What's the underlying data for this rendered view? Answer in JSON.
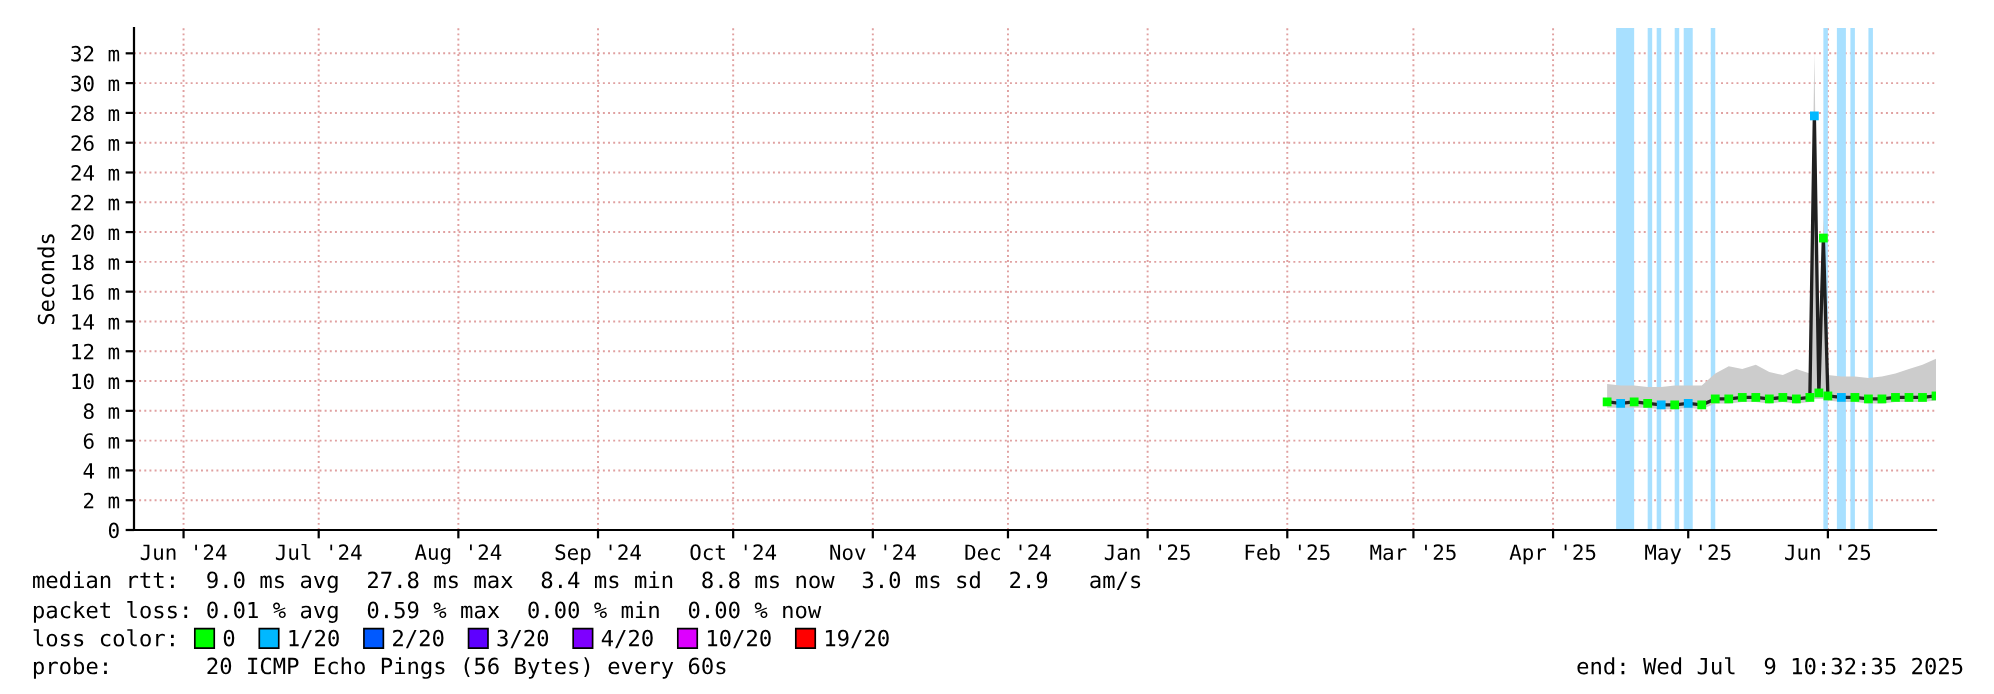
{
  "chart_data": {
    "type": "line",
    "ylabel": "Seconds",
    "legend_title": "loss color:",
    "legend": "bottom",
    "grid": true,
    "xlim": [
      "2024-06-04",
      "2025-07-09"
    ],
    "xticks": [
      {
        "value": "2024-06-15",
        "label": "Jun '24"
      },
      {
        "value": "2024-07-15",
        "label": "Jul '24"
      },
      {
        "value": "2024-08-15",
        "label": "Aug '24"
      },
      {
        "value": "2024-09-15",
        "label": "Sep '24"
      },
      {
        "value": "2024-10-15",
        "label": "Oct '24"
      },
      {
        "value": "2024-11-15",
        "label": "Nov '24"
      },
      {
        "value": "2024-12-15",
        "label": "Dec '24"
      },
      {
        "value": "2025-01-15",
        "label": "Jan '25"
      },
      {
        "value": "2025-02-15",
        "label": "Feb '25"
      },
      {
        "value": "2025-03-15",
        "label": "Mar '25"
      },
      {
        "value": "2025-04-15",
        "label": "Apr '25"
      },
      {
        "value": "2025-05-15",
        "label": "May '25"
      },
      {
        "value": "2025-06-15",
        "label": "Jun '25"
      }
    ],
    "ylim": [
      0,
      33.7
    ],
    "yticks": [
      0,
      {
        "value": 2,
        "label": "2 m"
      },
      {
        "value": 4,
        "label": "4 m"
      },
      {
        "value": 6,
        "label": "6 m"
      },
      {
        "value": 8,
        "label": "8 m"
      },
      {
        "value": 10,
        "label": "10 m"
      },
      {
        "value": 12,
        "label": "12 m"
      },
      {
        "value": 14,
        "label": "14 m"
      },
      {
        "value": 16,
        "label": "16 m"
      },
      {
        "value": 18,
        "label": "18 m"
      },
      {
        "value": 20,
        "label": "20 m"
      },
      {
        "value": 22,
        "label": "22 m"
      },
      {
        "value": 24,
        "label": "24 m"
      },
      {
        "value": 26,
        "label": "26 m"
      },
      {
        "value": 28,
        "label": "28 m"
      },
      {
        "value": 30,
        "label": "30 m"
      },
      {
        "value": 32,
        "label": "32 m"
      }
    ],
    "x": [
      "2025-04-27",
      "2025-04-30",
      "2025-05-03",
      "2025-05-06",
      "2025-05-09",
      "2025-05-12",
      "2025-05-15",
      "2025-05-18",
      "2025-05-21",
      "2025-05-24",
      "2025-05-27",
      "2025-05-30",
      "2025-06-02",
      "2025-06-05",
      "2025-06-08",
      "2025-06-11",
      "2025-06-12",
      "2025-06-13",
      "2025-06-14",
      "2025-06-15",
      "2025-06-18",
      "2025-06-21",
      "2025-06-24",
      "2025-06-27",
      "2025-06-30",
      "2025-07-03",
      "2025-07-06",
      "2025-07-09"
    ],
    "series": [
      {
        "color": "#202020",
        "marker": "none",
        "values": [
          8.6,
          8.5,
          8.6,
          8.5,
          8.4,
          8.4,
          8.5,
          8.4,
          8.8,
          8.8,
          8.9,
          8.9,
          8.8,
          8.9,
          8.8,
          8.9,
          27.8,
          9.2,
          19.6,
          9.0,
          8.9,
          8.9,
          8.8,
          8.8,
          8.9,
          8.9,
          8.9,
          9.0
        ],
        "lower": [
          8.2,
          8.2,
          8.2,
          8.2,
          8.1,
          8.1,
          8.2,
          8.1,
          8.5,
          8.5,
          8.6,
          8.6,
          8.5,
          8.6,
          8.5,
          8.6,
          8.8,
          8.8,
          8.8,
          8.7,
          8.6,
          8.6,
          8.5,
          8.5,
          8.6,
          8.6,
          8.6,
          8.7
        ],
        "upper": [
          9.8,
          9.7,
          9.7,
          9.6,
          9.6,
          9.7,
          9.7,
          9.7,
          10.5,
          11.0,
          10.8,
          11.1,
          10.6,
          10.4,
          10.8,
          10.5,
          32.0,
          10.5,
          21.0,
          10.4,
          10.3,
          10.3,
          10.2,
          10.3,
          10.5,
          10.8,
          11.1,
          11.5
        ]
      },
      {
        "type": "scatter",
        "name": "0",
        "color": "#00ff00",
        "values": [
          8.6,
          null,
          8.6,
          8.5,
          null,
          8.4,
          null,
          8.4,
          8.8,
          8.8,
          8.9,
          8.9,
          8.8,
          8.9,
          8.8,
          8.9,
          null,
          9.2,
          19.6,
          9.0,
          null,
          8.9,
          8.8,
          8.8,
          8.9,
          8.9,
          8.9,
          9.0
        ]
      },
      {
        "type": "scatter",
        "name": "1/20",
        "color": "#00b8ff",
        "values": [
          null,
          8.5,
          null,
          null,
          8.4,
          null,
          8.5,
          null,
          null,
          null,
          null,
          null,
          null,
          null,
          null,
          null,
          27.8,
          null,
          null,
          null,
          8.9,
          null,
          null,
          null,
          null,
          null,
          null,
          null
        ]
      },
      {
        "type": "scatter",
        "name": "2/20",
        "color": "#0059ff",
        "values": [
          null,
          null,
          null,
          null,
          null,
          null,
          null,
          null,
          null,
          null,
          null,
          null,
          null,
          null,
          null,
          null,
          null,
          null,
          null,
          null,
          null,
          null,
          null,
          null,
          null,
          null,
          null,
          null
        ]
      },
      {
        "type": "scatter",
        "name": "3/20",
        "color": "#5e00ff",
        "values": [
          null,
          null,
          null,
          null,
          null,
          null,
          null,
          null,
          null,
          null,
          null,
          null,
          null,
          null,
          null,
          null,
          null,
          null,
          null,
          null,
          null,
          null,
          null,
          null,
          null,
          null,
          null,
          null
        ]
      },
      {
        "type": "scatter",
        "name": "4/20",
        "color": "#7e00ff",
        "values": [
          null,
          null,
          null,
          null,
          null,
          null,
          null,
          null,
          null,
          null,
          null,
          null,
          null,
          null,
          null,
          null,
          null,
          null,
          null,
          null,
          null,
          null,
          null,
          null,
          null,
          null,
          null,
          null
        ]
      },
      {
        "type": "scatter",
        "name": "10/20",
        "color": "#dd00ff",
        "values": [
          null,
          null,
          null,
          null,
          null,
          null,
          null,
          null,
          null,
          null,
          null,
          null,
          null,
          null,
          null,
          null,
          null,
          null,
          null,
          null,
          null,
          null,
          null,
          null,
          null,
          null,
          null,
          null
        ]
      },
      {
        "type": "scatter",
        "name": "19/20",
        "color": "#ff0000",
        "values": [
          null,
          null,
          null,
          null,
          null,
          null,
          null,
          null,
          null,
          null,
          null,
          null,
          null,
          null,
          null,
          null,
          null,
          null,
          null,
          null,
          null,
          null,
          null,
          null,
          null,
          null,
          null,
          null
        ]
      }
    ],
    "marker": "square",
    "bands": [
      {
        "axis": "x",
        "from": "2025-04-29",
        "to": "2025-05-03",
        "color": "#a8e0ff"
      },
      {
        "axis": "x",
        "from": "2025-05-06",
        "to": "2025-05-07",
        "color": "#a8e0ff"
      },
      {
        "axis": "x",
        "from": "2025-05-08",
        "to": "2025-05-09",
        "color": "#a8e0ff"
      },
      {
        "axis": "x",
        "from": "2025-05-12",
        "to": "2025-05-13",
        "color": "#a8e0ff"
      },
      {
        "axis": "x",
        "from": "2025-05-14",
        "to": "2025-05-16",
        "color": "#a8e0ff"
      },
      {
        "axis": "x",
        "from": "2025-05-20",
        "to": "2025-05-21",
        "color": "#a8e0ff"
      },
      {
        "axis": "x",
        "from": "2025-06-14",
        "to": "2025-06-15",
        "color": "#a8e0ff"
      },
      {
        "axis": "x",
        "from": "2025-06-17",
        "to": "2025-06-19",
        "color": "#a8e0ff"
      },
      {
        "axis": "x",
        "from": "2025-06-20",
        "to": "2025-06-21",
        "color": "#a8e0ff"
      },
      {
        "axis": "x",
        "from": "2025-06-24",
        "to": "2025-06-25",
        "color": "#a8e0ff"
      }
    ],
    "annotations": [
      "median rtt:  9.0 ms avg  27.8 ms max  8.4 ms min  8.8 ms now  3.0 ms sd  2.9   am/s",
      "packet loss: 0.01 % avg  0.59 % max  0.00 % min  0.00 % now",
      "probe:       20 ICMP Echo Pings (56 Bytes) every 60s",
      "end: Wed Jul  9 10:32:35 2025"
    ]
  }
}
